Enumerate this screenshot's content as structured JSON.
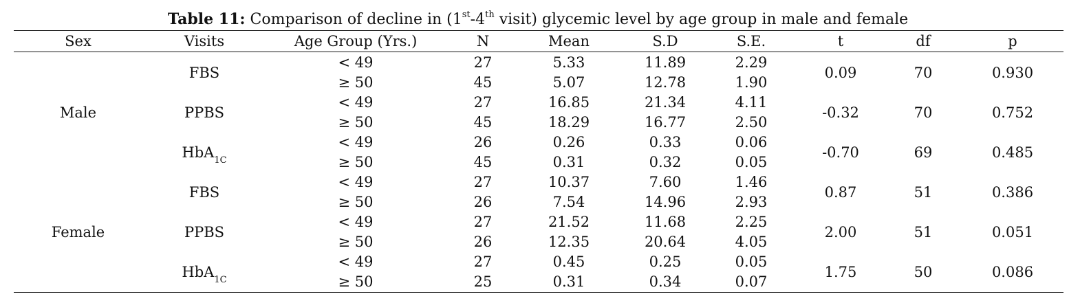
{
  "caption": {
    "label": "Table 11:",
    "text_a": "Comparison of decline in (1",
    "sup_a": "st",
    "text_b": "-4",
    "sup_b": "th",
    "text_c": " visit) glycemic level by age group in male and female"
  },
  "columns": {
    "sex": "Sex",
    "visits": "Visits",
    "age_group": "Age Group (Yrs.)",
    "n": "N",
    "mean": "Mean",
    "sd": "S.D",
    "se": "S.E.",
    "t": "t",
    "df": "df",
    "p": "p"
  },
  "groups": [
    {
      "sex": "Male",
      "visits": [
        {
          "name": "FBS",
          "sub": "",
          "rows": [
            {
              "age": "< 49",
              "n": "27",
              "mean": "5.33",
              "sd": "11.89",
              "se": "2.29"
            },
            {
              "age": "≥ 50",
              "n": "45",
              "mean": "5.07",
              "sd": "12.78",
              "se": "1.90"
            }
          ],
          "t": "0.09",
          "df": "70",
          "p": "0.930"
        },
        {
          "name": "PPBS",
          "sub": "",
          "rows": [
            {
              "age": "< 49",
              "n": "27",
              "mean": "16.85",
              "sd": "21.34",
              "se": "4.11"
            },
            {
              "age": "≥ 50",
              "n": "45",
              "mean": "18.29",
              "sd": "16.77",
              "se": "2.50"
            }
          ],
          "t": "-0.32",
          "df": "70",
          "p": "0.752"
        },
        {
          "name": "HbA",
          "sub": "1C",
          "rows": [
            {
              "age": "< 49",
              "n": "26",
              "mean": "0.26",
              "sd": "0.33",
              "se": "0.06"
            },
            {
              "age": "≥ 50",
              "n": "45",
              "mean": "0.31",
              "sd": "0.32",
              "se": "0.05"
            }
          ],
          "t": "-0.70",
          "df": "69",
          "p": "0.485"
        }
      ]
    },
    {
      "sex": "Female",
      "visits": [
        {
          "name": "FBS",
          "sub": "",
          "rows": [
            {
              "age": "< 49",
              "n": "27",
              "mean": "10.37",
              "sd": "7.60",
              "se": "1.46"
            },
            {
              "age": "≥ 50",
              "n": "26",
              "mean": "7.54",
              "sd": "14.96",
              "se": "2.93"
            }
          ],
          "t": "0.87",
          "df": "51",
          "p": "0.386"
        },
        {
          "name": "PPBS",
          "sub": "",
          "rows": [
            {
              "age": "< 49",
              "n": "27",
              "mean": "21.52",
              "sd": "11.68",
              "se": "2.25"
            },
            {
              "age": "≥ 50",
              "n": "26",
              "mean": "12.35",
              "sd": "20.64",
              "se": "4.05"
            }
          ],
          "t": "2.00",
          "df": "51",
          "p": "0.051"
        },
        {
          "name": "HbA",
          "sub": "1C",
          "rows": [
            {
              "age": "< 49",
              "n": "27",
              "mean": "0.45",
              "sd": "0.25",
              "se": "0.05"
            },
            {
              "age": "≥ 50",
              "n": "25",
              "mean": "0.31",
              "sd": "0.34",
              "se": "0.07"
            }
          ],
          "t": "1.75",
          "df": "50",
          "p": "0.086"
        }
      ]
    }
  ]
}
